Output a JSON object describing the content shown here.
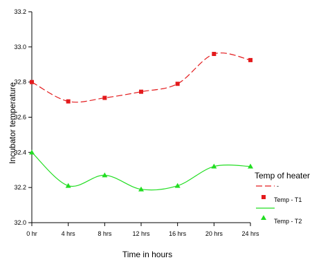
{
  "chart_data": {
    "type": "line",
    "title": "",
    "xlabel": "Time in hours",
    "ylabel": "Incubator temperature",
    "categories": [
      "0 hr",
      "4 hrs",
      "8 hrs",
      "12 hrs",
      "16 hrs",
      "20 hrs",
      "24 hrs"
    ],
    "ylim": [
      32.0,
      33.2
    ],
    "yticks": [
      "32.0",
      "32.2",
      "32.4",
      "32.6",
      "32.8",
      "33.0",
      "33.2"
    ],
    "grid": false,
    "legend": {
      "title": "Temp of heater",
      "placement": "right",
      "entries": [
        "-",
        "Temp - T1",
        "",
        "Temp - T2"
      ]
    },
    "series": [
      {
        "name": "Temp - T1",
        "color": "#e31a1c",
        "line_style": "dashed",
        "marker": "square",
        "values": [
          32.8,
          32.69,
          32.71,
          32.745,
          32.79,
          32.96,
          32.925
        ]
      },
      {
        "name": "Temp - T2",
        "color": "#22dd22",
        "line_style": "solid",
        "marker": "triangle",
        "values": [
          32.4,
          32.21,
          32.27,
          32.19,
          32.21,
          32.32,
          32.32
        ]
      }
    ]
  }
}
